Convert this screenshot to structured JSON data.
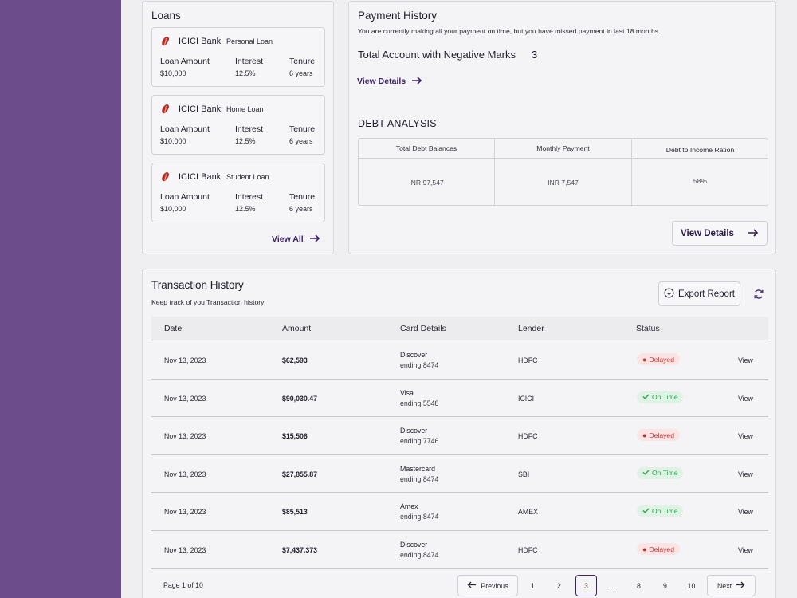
{
  "colors": {
    "sidebar": "#6d4c8b",
    "accent": "#3d2263",
    "delayed": "#c3302f",
    "on_time": "#2f9d55"
  },
  "loans": {
    "title": "Loans",
    "labels": {
      "amount": "Loan Amount",
      "interest": "Interest",
      "tenure": "Tenure"
    },
    "items": [
      {
        "bank": "ICICI Bank",
        "type": "Personal Loan",
        "amount": "$10,000",
        "interest": "12.5%",
        "tenure": "6 years"
      },
      {
        "bank": "ICICI Bank",
        "type": "Home Loan",
        "amount": "$10,000",
        "interest": "12.5%",
        "tenure": "6 years"
      },
      {
        "bank": "ICICI Bank",
        "type": "Student Loan",
        "amount": "$10,000",
        "interest": "12.5%",
        "tenure": "6 years"
      }
    ],
    "view_all": "View All"
  },
  "payment_history": {
    "title": "Payment History",
    "description": "You are currently making all your payment on time, but you have missed payment in last 18 months.",
    "negative_label": "Total Account with Negative Marks",
    "negative_count": "3",
    "view_details": "View Details"
  },
  "debt_analysis": {
    "title": "DEBT ANALYSIS",
    "columns": [
      {
        "header": "Total Debt Balances",
        "value": "INR 97,547"
      },
      {
        "header": "Monthly Payment",
        "value": "INR 7,547"
      },
      {
        "header": "Debt to Income Ration",
        "value": "58%"
      }
    ],
    "view_details": "View Details"
  },
  "transactions": {
    "title": "Transaction History",
    "subtitle": "Keep track of you Transaction history",
    "export_label": "Export Report",
    "headers": {
      "date": "Date",
      "amount": "Amount",
      "card": "Card Details",
      "lender": "Lender",
      "status": "Status"
    },
    "rows": [
      {
        "date": "Nov 13, 2023",
        "amount": "$62,593",
        "card": "Discover",
        "ending": "ending 8474",
        "lender": "HDFC",
        "status": "Delayed",
        "view": "View"
      },
      {
        "date": "Nov 13, 2023",
        "amount": "$90,030.47",
        "card": "Visa",
        "ending": "ending 5548",
        "lender": "ICICI",
        "status": "On Time",
        "view": "View"
      },
      {
        "date": "Nov 13, 2023",
        "amount": "$15,506",
        "card": "Discover",
        "ending": "ending 7746",
        "lender": "HDFC",
        "status": "Delayed",
        "view": "View"
      },
      {
        "date": "Nov 13, 2023",
        "amount": "$27,855.87",
        "card": "Mastercard",
        "ending": "ending 8474",
        "lender": "SBI",
        "status": "On Time",
        "view": "View"
      },
      {
        "date": "Nov 13, 2023",
        "amount": "$85,513",
        "card": "Amex",
        "ending": "ending 8474",
        "lender": "AMEX",
        "status": "On Time",
        "view": "View"
      },
      {
        "date": "Nov 13, 2023",
        "amount": "$7,437.373",
        "card": "Discover",
        "ending": "ending 8474",
        "lender": "HDFC",
        "status": "Delayed",
        "view": "View"
      }
    ],
    "pagination": {
      "page_text": "Page 1 of 10",
      "previous": "Previous",
      "next": "Next",
      "pages": [
        "1",
        "2",
        "3",
        "...",
        "8",
        "9",
        "10"
      ],
      "active": "3"
    }
  }
}
